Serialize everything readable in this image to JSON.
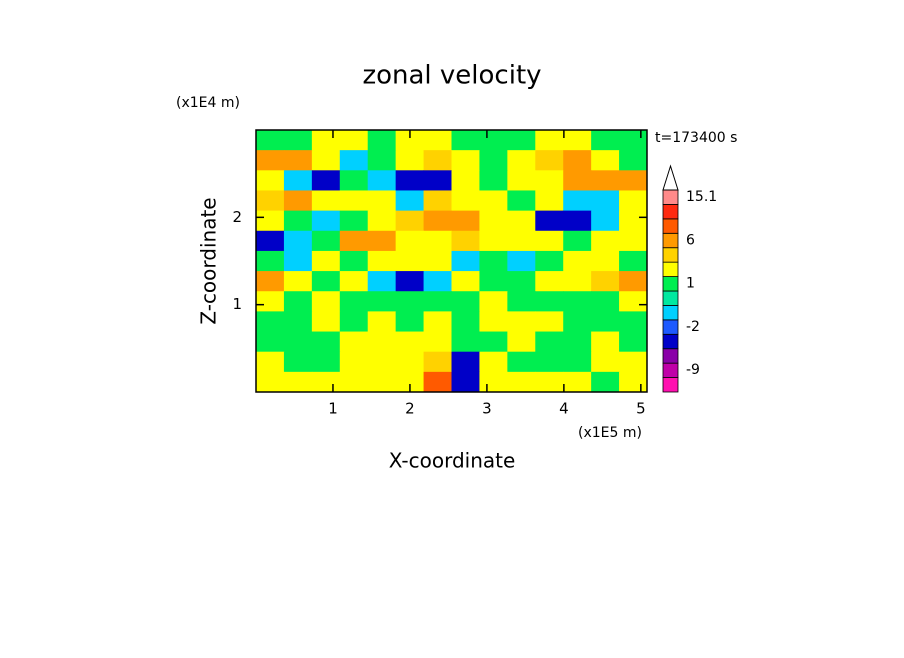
{
  "chart_data": {
    "type": "contourf",
    "title": "zonal velocity",
    "x_label": "X-coordinate",
    "y_label": "Z-coordinate",
    "x_unit": "(x1E5 m)",
    "y_unit": "(x1E4 m)",
    "annotation": "t=173400 s",
    "xlim": [
      0,
      5.08
    ],
    "ylim": [
      0,
      3
    ],
    "xticks": [
      1,
      2,
      3,
      4,
      5
    ],
    "yticks": [
      1,
      2
    ],
    "z": [
      [
        0.5,
        0.5,
        1.5,
        1.5,
        0.5,
        1.5,
        1.5,
        0.5,
        0.5,
        0.5,
        1.5,
        1.5,
        0.5,
        0.5
      ],
      [
        4,
        4,
        1.5,
        -1.5,
        0.5,
        1.5,
        2.5,
        1.5,
        0.5,
        1.5,
        2.5,
        4,
        1.5,
        0.5
      ],
      [
        1.5,
        -1.5,
        -4,
        0.5,
        -1.5,
        -4,
        -4,
        1.5,
        0.5,
        1.5,
        1.5,
        4,
        4,
        4
      ],
      [
        2.5,
        4,
        1.5,
        1.5,
        1.5,
        -1.5,
        2.5,
        1.5,
        1.5,
        0.5,
        1.5,
        -1.5,
        -1.5,
        1.5
      ],
      [
        1.5,
        0.5,
        -1.5,
        0.5,
        1.5,
        2.5,
        4,
        4,
        1.5,
        1.5,
        -4,
        -4,
        -1.5,
        1.5
      ],
      [
        -4,
        -1.5,
        0.5,
        4,
        4,
        1.5,
        1.5,
        2.5,
        1.5,
        1.5,
        1.5,
        0.5,
        1.5,
        1.5
      ],
      [
        0.5,
        -1.5,
        1.5,
        0.5,
        1.5,
        1.5,
        1.5,
        -1.5,
        0.5,
        -1.5,
        0.5,
        1.5,
        1.5,
        0.5
      ],
      [
        4,
        1.5,
        0.5,
        1.5,
        -1.5,
        -4,
        -1.5,
        1.5,
        0.5,
        0.5,
        1.5,
        1.5,
        2.5,
        4
      ],
      [
        1.5,
        0.5,
        1.5,
        0.5,
        0.5,
        0.5,
        0.5,
        0.5,
        1.5,
        0.5,
        0.5,
        0.5,
        0.5,
        1.5
      ],
      [
        0.5,
        0.5,
        1.5,
        0.5,
        1.5,
        0.5,
        1.5,
        0.5,
        1.5,
        1.5,
        1.5,
        0.5,
        0.5,
        0.5
      ],
      [
        0.5,
        0.5,
        0.5,
        1.5,
        1.5,
        1.5,
        1.5,
        0.5,
        0.5,
        1.5,
        0.5,
        0.5,
        1.5,
        0.5
      ],
      [
        1.5,
        0.5,
        0.5,
        1.5,
        1.5,
        1.5,
        2.5,
        -4,
        1.5,
        0.5,
        0.5,
        0.5,
        1.5,
        1.5
      ],
      [
        1.5,
        1.5,
        1.5,
        1.5,
        1.5,
        1.5,
        7,
        -4,
        1.5,
        1.5,
        1.5,
        1.5,
        0.5,
        1.5
      ]
    ],
    "colorbar": {
      "bounds": [
        -15,
        -12,
        -9,
        -6,
        -3,
        -2,
        -1,
        0,
        1,
        2,
        3,
        6,
        9,
        12,
        15.1
      ],
      "colors": [
        "#ff10b0",
        "#c000a8",
        "#8a00a8",
        "#0000c8",
        "#1e5aff",
        "#00d0ff",
        "#00e8a0",
        "#00ee50",
        "#ffff00",
        "#ffd200",
        "#ff9a00",
        "#ff5a00",
        "#ff2a10",
        "#ff8a8a"
      ],
      "ticks": [
        15.1,
        6,
        1,
        -2,
        -9
      ]
    }
  }
}
